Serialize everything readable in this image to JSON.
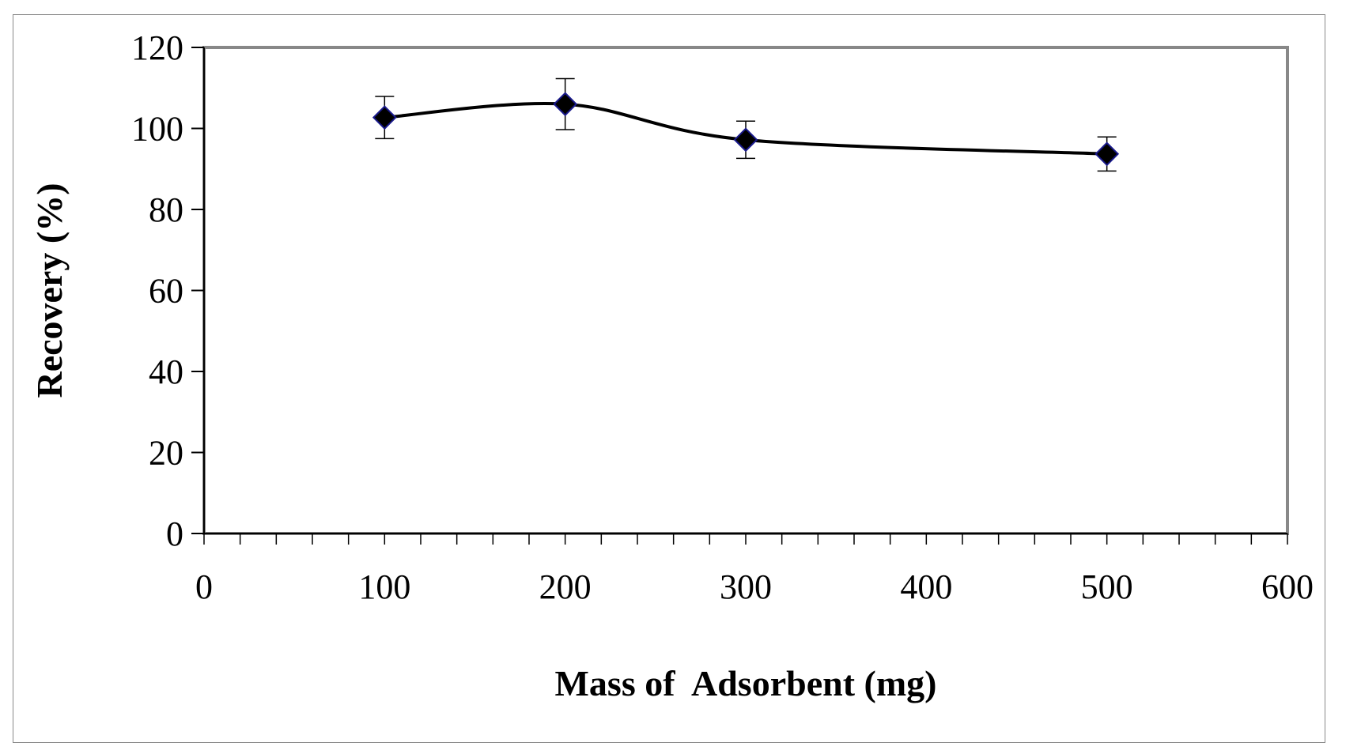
{
  "chart_data": {
    "type": "line",
    "title": "",
    "xlabel": "Mass of  Adsorbent (mg)",
    "ylabel": "Recovery (%)",
    "xlim": [
      0,
      600
    ],
    "ylim": [
      0,
      120
    ],
    "x_ticks": [
      0,
      100,
      200,
      300,
      400,
      500,
      600
    ],
    "y_ticks": [
      0,
      20,
      40,
      60,
      80,
      100,
      120
    ],
    "x_minor_step": 20,
    "grid": false,
    "smooth": true,
    "series": [
      {
        "name": "Recovery",
        "x": [
          100,
          200,
          300,
          500
        ],
        "values": [
          102.7,
          106.0,
          97.2,
          93.7
        ],
        "error": [
          5.2,
          6.3,
          4.6,
          4.2
        ],
        "line_color": "#000000",
        "marker_color": "#000000",
        "marker_edge_color": "#1a1a8c",
        "marker": "diamond"
      }
    ],
    "colors": {
      "frame": "#888888",
      "axis": "#000000"
    }
  }
}
